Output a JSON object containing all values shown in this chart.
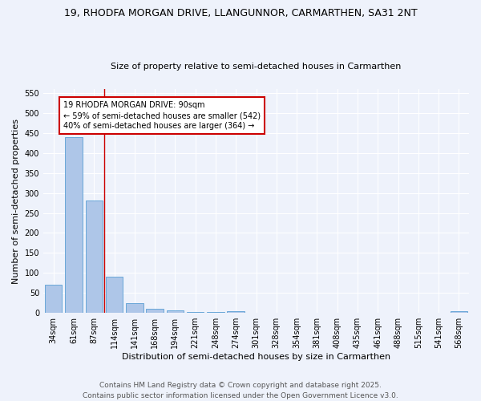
{
  "title_line1": "19, RHODFA MORGAN DRIVE, LLANGUNNOR, CARMARTHEN, SA31 2NT",
  "title_line2": "Size of property relative to semi-detached houses in Carmarthen",
  "bar_labels": [
    "34sqm",
    "61sqm",
    "87sqm",
    "114sqm",
    "141sqm",
    "168sqm",
    "194sqm",
    "221sqm",
    "248sqm",
    "274sqm",
    "301sqm",
    "328sqm",
    "354sqm",
    "381sqm",
    "408sqm",
    "435sqm",
    "461sqm",
    "488sqm",
    "515sqm",
    "541sqm",
    "568sqm"
  ],
  "bar_values": [
    70,
    440,
    282,
    90,
    25,
    11,
    6,
    2,
    2,
    5,
    0,
    0,
    0,
    0,
    0,
    0,
    0,
    0,
    0,
    0,
    4
  ],
  "bar_color": "#aec6e8",
  "bar_edge_color": "#5a9fd4",
  "xlabel": "Distribution of semi-detached houses by size in Carmarthen",
  "ylabel": "Number of semi-detached properties",
  "ylim_max": 560,
  "yticks": [
    0,
    50,
    100,
    150,
    200,
    250,
    300,
    350,
    400,
    450,
    500,
    550
  ],
  "annotation_text": "19 RHODFA MORGAN DRIVE: 90sqm\n← 59% of semi-detached houses are smaller (542)\n40% of semi-detached houses are larger (364) →",
  "annotation_box_color": "#ffffff",
  "annotation_box_edge": "#cc0000",
  "property_line_x": 2.5,
  "property_line_color": "#cc0000",
  "footnote_line1": "Contains HM Land Registry data © Crown copyright and database right 2025.",
  "footnote_line2": "Contains public sector information licensed under the Open Government Licence v3.0.",
  "background_color": "#eef2fb",
  "grid_color": "#ffffff",
  "title_fontsize": 9,
  "subtitle_fontsize": 8,
  "axis_label_fontsize": 8,
  "tick_fontsize": 7,
  "annotation_fontsize": 7,
  "footnote_fontsize": 6.5
}
